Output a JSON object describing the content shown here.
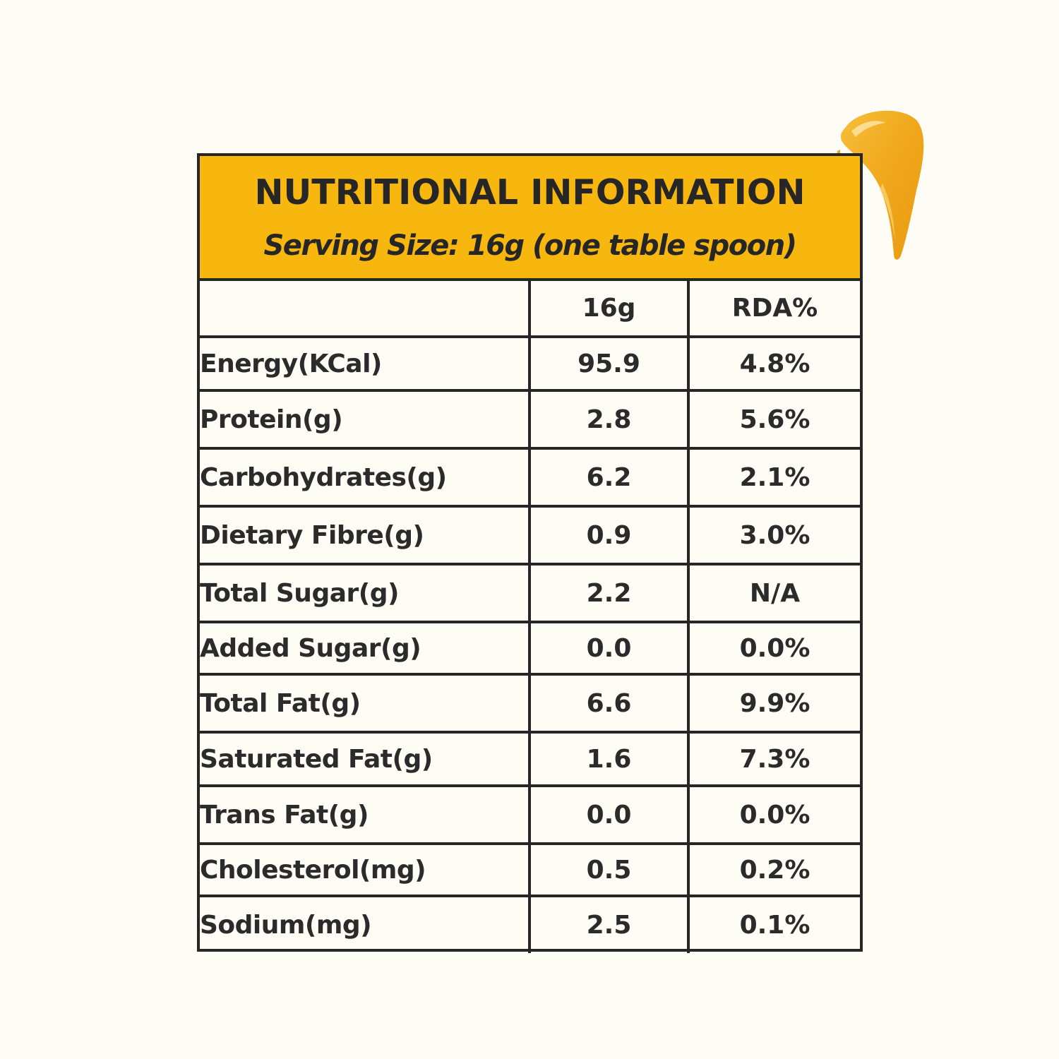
{
  "colors": {
    "background": "#fdfdf6",
    "header_fill": "#f8b70f",
    "border": "#262626",
    "text": "#262626",
    "smear": "#f2a81c"
  },
  "decoration": {
    "smear_icon": "peanut-butter-smear"
  },
  "header": {
    "title": "NUTRITIONAL INFORMATION",
    "subtitle": "Serving Size: 16g (one table spoon)"
  },
  "table": {
    "columns": [
      "",
      "16g",
      "RDA%"
    ],
    "rows": [
      {
        "nutrient": "Energy(KCal)",
        "value": "95.9",
        "rda": "4.8%"
      },
      {
        "nutrient": "Protein(g)",
        "value": "2.8",
        "rda": "5.6%"
      },
      {
        "nutrient": "Carbohydrates(g)",
        "value": "6.2",
        "rda": "2.1%"
      },
      {
        "nutrient": "Dietary Fibre(g)",
        "value": "0.9",
        "rda": "3.0%"
      },
      {
        "nutrient": "Total Sugar(g)",
        "value": "2.2",
        "rda": "N/A"
      },
      {
        "nutrient": "Added Sugar(g)",
        "value": "0.0",
        "rda": "0.0%"
      },
      {
        "nutrient": "Total Fat(g)",
        "value": "6.6",
        "rda": "9.9%"
      },
      {
        "nutrient": "Saturated Fat(g)",
        "value": "1.6",
        "rda": "7.3%"
      },
      {
        "nutrient": "Trans Fat(g)",
        "value": "0.0",
        "rda": "0.0%"
      },
      {
        "nutrient": "Cholesterol(mg)",
        "value": "0.5",
        "rda": "0.2%"
      },
      {
        "nutrient": "Sodium(mg)",
        "value": "2.5",
        "rda": "0.1%"
      }
    ]
  }
}
